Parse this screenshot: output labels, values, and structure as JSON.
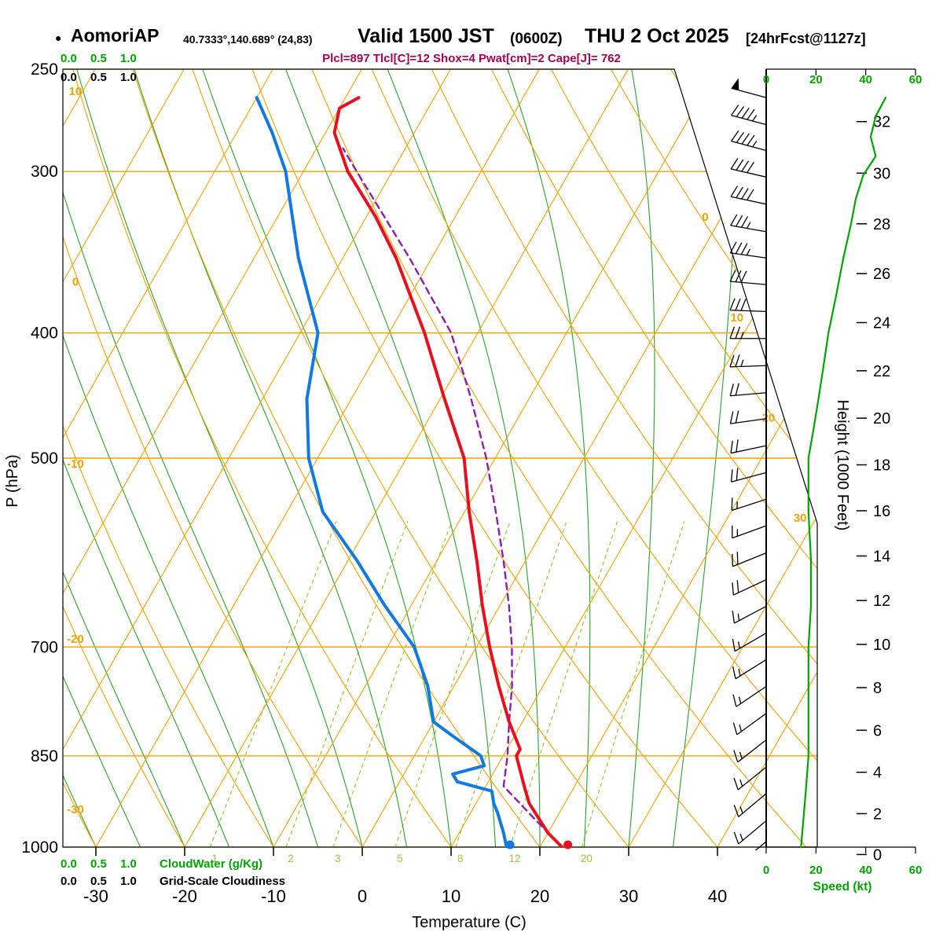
{
  "header": {
    "bullet": "●",
    "station": "AomoriAP",
    "coords": "40.7333°,140.689° (24,83)",
    "valid_time": "Valid 1500 JST",
    "valid_utc": "(0600Z)",
    "valid_date": "THU 2 Oct 2025",
    "forecast_tag": "[24hrFcst@1127z]",
    "indices": "Plcl=897 Tlcl[C]=12 Shox=4 Pwat[cm]=2 Cape[J]= 762"
  },
  "colors": {
    "grid_orange": "#f0a202",
    "moist_green": "#2aa02a",
    "mixing_green": "#9ac832",
    "accent_green": "#00a400",
    "temperature_red": "#e8101e",
    "dewpoint_blue": "#1279e0",
    "parcel_purple": "#8a1fae",
    "indices_magenta": "#aa0050",
    "barb_black": "#000000"
  },
  "axes": {
    "pressure_axis_label": "P (hPa)",
    "pressure_ticks_hpa": [
      250,
      300,
      400,
      500,
      700,
      850,
      1000
    ],
    "temperature_axis_label": "Temperature (C)",
    "temperature_ticks_c": [
      -30,
      -20,
      -10,
      0,
      10,
      20,
      30,
      40
    ],
    "height_axis_label": "Height (1000 Feet)",
    "height_ticks_kft": [
      0,
      2,
      4,
      6,
      8,
      10,
      12,
      14,
      16,
      18,
      20,
      22,
      24,
      26,
      28,
      30,
      32
    ],
    "speed_axis_label": "Speed (kt)",
    "speed_ticks_kt": [
      0,
      20,
      40,
      60
    ]
  },
  "legend": {
    "cloudwater_scale": [
      "0.0",
      "0.5",
      "1.0"
    ],
    "cloudwater_label": "CloudWater (g/Kg)",
    "cloudiness_scale": [
      "0.0",
      "0.5",
      "1.0"
    ],
    "cloudiness_label": "Grid-Scale Cloudiness"
  },
  "chart_data": {
    "type": "skewt_log_p_sounding",
    "pressure_range_hpa": [
      250,
      1000
    ],
    "isotherm_step_c": 10,
    "isotherm_labels_c": [
      0,
      10,
      20,
      30
    ],
    "dry_adiabat_labels_c": [
      10,
      0,
      -10,
      -20,
      -30
    ],
    "mixing_ratio_lines_g_kg": [
      1,
      2,
      3,
      5,
      8,
      12,
      20
    ],
    "temperature_profile": {
      "pressure_hpa": [
        1005,
        975,
        925,
        900,
        850,
        840,
        800,
        750,
        700,
        650,
        600,
        550,
        500,
        450,
        400,
        350,
        325,
        300,
        280,
        268,
        263
      ],
      "temp_c": [
        23,
        20,
        16,
        14.5,
        11.5,
        11.5,
        8.5,
        5,
        1.5,
        -2,
        -5.5,
        -9.5,
        -13.5,
        -19.5,
        -26,
        -34,
        -39,
        -45,
        -49,
        -50,
        -48.5
      ]
    },
    "dewpoint_profile": {
      "pressure_hpa": [
        1005,
        975,
        940,
        925,
        905,
        890,
        878,
        865,
        850,
        820,
        800,
        750,
        700,
        650,
        600,
        550,
        500,
        450,
        400,
        350,
        300,
        280,
        263
      ],
      "temp_c": [
        16.5,
        15,
        13,
        12,
        11,
        6.5,
        5.5,
        8.5,
        7.5,
        3,
        0,
        -3,
        -7,
        -13,
        -19,
        -26,
        -31,
        -35,
        -38,
        -45,
        -52,
        -56,
        -60
      ]
    },
    "parcel_profile": {
      "pressure_hpa": [
        1005,
        950,
        897,
        850,
        800,
        750,
        700,
        650,
        600,
        550,
        500,
        450,
        400,
        350,
        300,
        288
      ],
      "temp_c": [
        23,
        17.5,
        12,
        10.5,
        8.5,
        6.5,
        4,
        1,
        -2.5,
        -6.5,
        -11,
        -16.5,
        -23,
        -32.5,
        -44,
        -47
      ]
    },
    "wind_barbs": {
      "pressure_hpa": [
        263,
        276,
        289,
        303,
        318,
        334,
        350,
        367,
        385,
        404,
        424,
        445,
        466,
        489,
        513,
        538,
        564,
        592,
        621,
        651,
        683,
        716,
        751,
        788,
        826,
        867,
        909,
        954,
        990
      ],
      "speed_kt": [
        50,
        45,
        43,
        40,
        38,
        35,
        33,
        30,
        28,
        25,
        23,
        22,
        20,
        19,
        18,
        17,
        17,
        18,
        18,
        17,
        17,
        17,
        17,
        17,
        16,
        16,
        15,
        15,
        15
      ],
      "direction_deg": [
        285,
        285,
        285,
        283,
        282,
        280,
        278,
        275,
        272,
        270,
        268,
        265,
        262,
        258,
        255,
        252,
        250,
        248,
        245,
        242,
        240,
        238,
        236,
        234,
        232,
        231,
        230,
        230,
        230
      ]
    },
    "wind_speed_curve": {
      "pressure_hpa": [
        263,
        272,
        282,
        292,
        302,
        315,
        330,
        350,
        375,
        400,
        425,
        450,
        475,
        500,
        525,
        550,
        600,
        650,
        700,
        750,
        800,
        850,
        900,
        950,
        1000
      ],
      "speed_kt": [
        48,
        44,
        42,
        44,
        39,
        36,
        34,
        31,
        28,
        25,
        23,
        21,
        19,
        17,
        17,
        17,
        18,
        18,
        17,
        17,
        17,
        17,
        16,
        15,
        14
      ]
    }
  }
}
